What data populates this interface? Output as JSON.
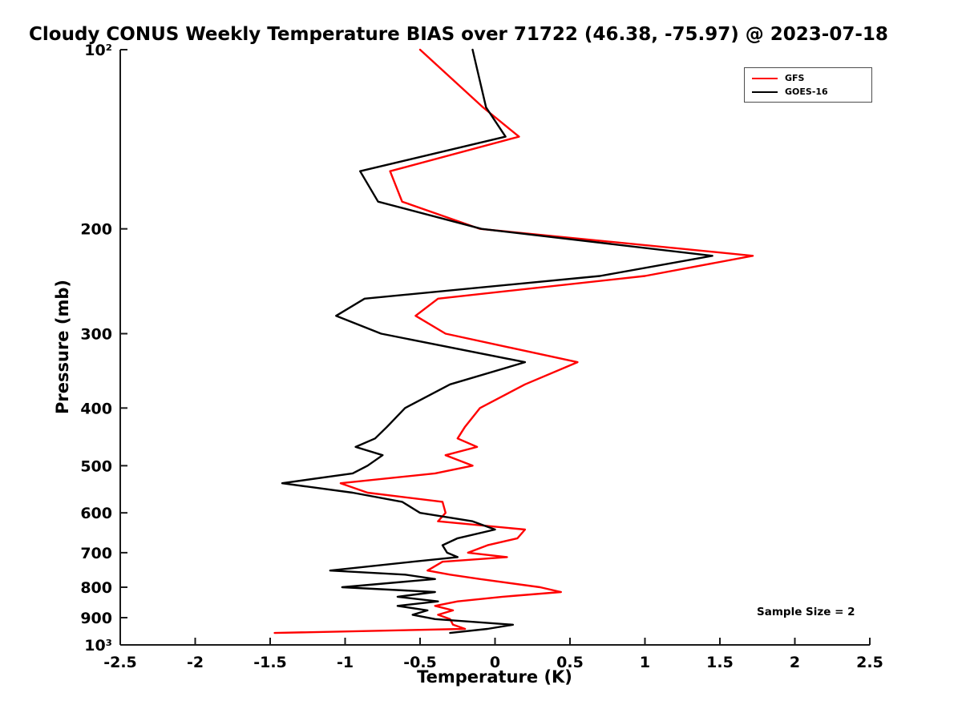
{
  "chart_data": {
    "type": "line",
    "title": "Cloudy CONUS Weekly Temperature BIAS over 71722 (46.38, -75.97) @ 2023-07-18",
    "xlabel": "Temperature (K)",
    "ylabel": "Pressure (mb)",
    "xlim": [
      -2.5,
      2.5
    ],
    "ylim": [
      100,
      1000
    ],
    "yscale": "log",
    "y_inverted": true,
    "grid": false,
    "x_ticks": [
      -2.5,
      -2,
      -1.5,
      -1,
      -0.5,
      0,
      0.5,
      1,
      1.5,
      2,
      2.5
    ],
    "x_tick_labels": [
      "-2.5",
      "-2",
      "-1.5",
      "-1",
      "-0.5",
      "0",
      "0.5",
      "1",
      "1.5",
      "2",
      "2.5"
    ],
    "y_ticks": [
      100,
      200,
      300,
      400,
      500,
      600,
      700,
      800,
      900,
      1000
    ],
    "y_tick_labels": [
      "10²",
      "200",
      "300",
      "400",
      "500",
      "600",
      "700",
      "800",
      "900",
      "10³"
    ],
    "legend_position": "top-right",
    "annotation": "Sample Size = 2",
    "series": [
      {
        "name": "GFS",
        "color": "#ff0000",
        "pressure": [
          100,
          125,
          140,
          160,
          180,
          200,
          222,
          240,
          262,
          280,
          300,
          335,
          365,
          400,
          430,
          450,
          465,
          480,
          500,
          515,
          535,
          555,
          575,
          600,
          620,
          640,
          662,
          680,
          700,
          712,
          725,
          750,
          762,
          775,
          800,
          815,
          830,
          845,
          860,
          875,
          890,
          905,
          925,
          940,
          955
        ],
        "bias": [
          -0.5,
          -0.08,
          0.16,
          -0.7,
          -0.62,
          -0.1,
          1.72,
          1.0,
          -0.38,
          -0.53,
          -0.33,
          0.55,
          0.2,
          -0.1,
          -0.2,
          -0.25,
          -0.12,
          -0.33,
          -0.15,
          -0.4,
          -1.03,
          -0.85,
          -0.35,
          -0.33,
          -0.38,
          0.2,
          0.15,
          -0.05,
          -0.18,
          0.08,
          -0.35,
          -0.45,
          -0.3,
          -0.1,
          0.3,
          0.44,
          0.05,
          -0.25,
          -0.4,
          -0.28,
          -0.38,
          -0.3,
          -0.28,
          -0.2,
          -1.47
        ]
      },
      {
        "name": "GOES-16",
        "color": "#000000",
        "pressure": [
          100,
          125,
          140,
          160,
          180,
          200,
          222,
          240,
          262,
          280,
          300,
          335,
          365,
          400,
          430,
          450,
          465,
          480,
          500,
          515,
          535,
          555,
          575,
          600,
          620,
          640,
          662,
          680,
          700,
          712,
          725,
          750,
          762,
          775,
          800,
          815,
          830,
          845,
          860,
          875,
          890,
          905,
          925,
          940,
          955
        ],
        "bias": [
          -0.15,
          -0.06,
          0.07,
          -0.9,
          -0.78,
          -0.09,
          1.45,
          0.7,
          -0.87,
          -1.06,
          -0.76,
          0.2,
          -0.3,
          -0.6,
          -0.72,
          -0.8,
          -0.93,
          -0.75,
          -0.85,
          -0.95,
          -1.42,
          -0.95,
          -0.62,
          -0.5,
          -0.15,
          0.0,
          -0.25,
          -0.35,
          -0.32,
          -0.25,
          -0.55,
          -1.1,
          -0.6,
          -0.4,
          -1.02,
          -0.4,
          -0.65,
          -0.38,
          -0.65,
          -0.45,
          -0.55,
          -0.4,
          0.12,
          -0.05,
          -0.3
        ]
      }
    ]
  }
}
